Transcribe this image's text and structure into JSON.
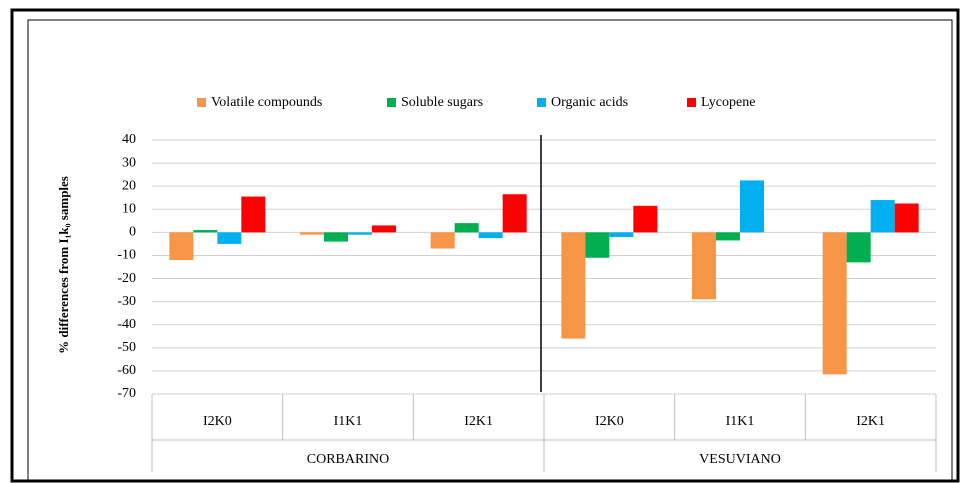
{
  "chart_data": {
    "type": "bar",
    "y_label": "% differences from I₁k₀ samples",
    "categories": [
      "I2K0",
      "I1K1",
      "I2K1",
      "I2K0",
      "I1K1",
      "I2K1"
    ],
    "groups": [
      {
        "name": "CORBARINO",
        "span": 3
      },
      {
        "name": "VESUVIANO",
        "span": 3
      }
    ],
    "series": [
      {
        "name": "Volatile compounds",
        "color": "#f79646",
        "values": [
          -12,
          -1,
          -7,
          -46,
          -29,
          -61.5
        ]
      },
      {
        "name": "Soluble sugars",
        "color": "#00b050",
        "values": [
          1,
          -4,
          4,
          -11,
          -3.5,
          -13
        ]
      },
      {
        "name": "Organic acids",
        "color": "#00b0f0",
        "values": [
          -5,
          -1,
          -2.5,
          -2,
          22.5,
          14
        ]
      },
      {
        "name": "Lycopene",
        "color": "#ff0000",
        "values": [
          15.5,
          3,
          16.5,
          11.5,
          0,
          12.5
        ]
      }
    ],
    "ylim": [
      -70,
      40
    ],
    "yticks": [
      -70,
      -60,
      -50,
      -40,
      -30,
      -20,
      -10,
      0,
      10,
      20,
      30,
      40
    ],
    "grid": true,
    "legend": "top"
  }
}
